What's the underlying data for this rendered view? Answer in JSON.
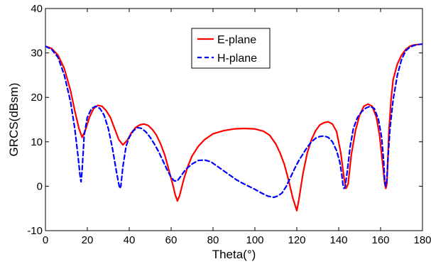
{
  "chart_data": {
    "type": "line",
    "xlabel": "Theta(°)",
    "ylabel": "GRCS(dBsm)",
    "xlim": [
      0,
      180
    ],
    "ylim": [
      -10,
      40
    ],
    "xticks": [
      "0",
      "20",
      "40",
      "60",
      "80",
      "100",
      "120",
      "140",
      "160",
      "180"
    ],
    "yticks": [
      "-10",
      "0",
      "10",
      "20",
      "30",
      "40"
    ],
    "grid": false,
    "legend_position": "top-center",
    "series": [
      {
        "name": "E-plane",
        "color": "#ff0000",
        "style": "solid",
        "x": [
          0,
          3,
          6,
          9,
          12,
          14,
          16,
          17.5,
          19,
          21,
          23,
          25,
          27,
          29,
          31,
          33,
          35,
          37,
          39,
          41,
          43,
          45,
          47,
          49,
          51,
          53,
          55,
          57,
          59,
          61,
          62,
          63,
          64,
          66,
          68,
          70,
          73,
          76,
          80,
          85,
          90,
          95,
          100,
          104,
          107,
          110,
          112,
          114,
          116,
          118,
          120,
          121,
          123,
          125,
          127,
          129,
          131,
          133,
          135,
          137,
          139,
          141,
          142.5,
          143.5,
          144.5,
          146,
          148,
          150,
          152,
          154,
          156,
          158,
          159.5,
          161,
          162,
          162.5,
          163,
          164,
          165,
          166,
          168,
          170,
          172,
          174,
          176,
          178,
          180
        ],
        "y": [
          31.5,
          31,
          29.5,
          26.5,
          21.5,
          17,
          13,
          11,
          12.5,
          15.5,
          17.5,
          18.2,
          18,
          17,
          15.5,
          13,
          10.5,
          9.3,
          10.3,
          12,
          13.2,
          13.8,
          14,
          13.7,
          12.8,
          11.5,
          9.5,
          7,
          3.5,
          0,
          -2,
          -3.3,
          -2.2,
          1.5,
          4.5,
          6.8,
          9,
          10.5,
          11.8,
          12.5,
          12.9,
          13,
          12.9,
          12.4,
          11.5,
          9.5,
          7.5,
          5,
          1.5,
          -2.5,
          -5.5,
          -3,
          3,
          7.5,
          10.5,
          12.5,
          13.8,
          14.3,
          14.5,
          14,
          12.3,
          7.5,
          2,
          -0.5,
          0.5,
          7,
          12.5,
          16,
          18,
          18.5,
          18,
          15.5,
          11.5,
          5,
          0.5,
          -0.5,
          0.5,
          12.5,
          19.5,
          24,
          27.5,
          29.5,
          30.8,
          31.5,
          31.8,
          31.9,
          32
        ]
      },
      {
        "name": "H-plane",
        "color": "#0000ff",
        "style": "dashed",
        "x": [
          0,
          3,
          6,
          9,
          12,
          14,
          15.5,
          16.5,
          17,
          17.5,
          18.5,
          20,
          22,
          24,
          26,
          28,
          30,
          32,
          34,
          35,
          35.5,
          36,
          37,
          38.5,
          40,
          42,
          44,
          46,
          48,
          50,
          52,
          54,
          56,
          58,
          60,
          61.5,
          63,
          65,
          67,
          70,
          73,
          76,
          79,
          82,
          85,
          88,
          91,
          94,
          97,
          100,
          103,
          106,
          109,
          111,
          113,
          115,
          117,
          119,
          121,
          123,
          125,
          127,
          129,
          131,
          133,
          135,
          137,
          139,
          140.5,
          141.5,
          142,
          142.5,
          143,
          144,
          145.5,
          147,
          149,
          151,
          153,
          155,
          157,
          159,
          160.5,
          161.5,
          162,
          162.5,
          163,
          163.5,
          164.5,
          166,
          168,
          170,
          172,
          174,
          176,
          178,
          180
        ],
        "y": [
          31.5,
          30.8,
          29,
          25,
          19,
          13,
          7,
          2.5,
          1,
          3.5,
          11.5,
          15.5,
          17.5,
          18,
          17.5,
          16,
          13,
          8.5,
          3,
          0.5,
          -0.5,
          0,
          4.5,
          9,
          11,
          12.5,
          13.2,
          13,
          12.2,
          11,
          9.5,
          7.8,
          5.8,
          3.8,
          2,
          1.2,
          1.2,
          2.5,
          3.8,
          5,
          5.8,
          5.9,
          5.5,
          4.5,
          3.5,
          2.5,
          1.5,
          0.7,
          0,
          -0.7,
          -1.5,
          -2.2,
          -2.5,
          -2.2,
          -1.5,
          0,
          2,
          4,
          5.8,
          7.3,
          8.8,
          10,
          10.8,
          11.2,
          11.3,
          11,
          10,
          8,
          5.5,
          2.5,
          0.5,
          -0.5,
          -0.3,
          3,
          9,
          13,
          15.5,
          16.8,
          17.6,
          18,
          17.5,
          15,
          11,
          5.5,
          1,
          0,
          1.5,
          6,
          13,
          19.5,
          25,
          28.5,
          30.5,
          31.3,
          31.7,
          31.9,
          32
        ]
      }
    ]
  }
}
